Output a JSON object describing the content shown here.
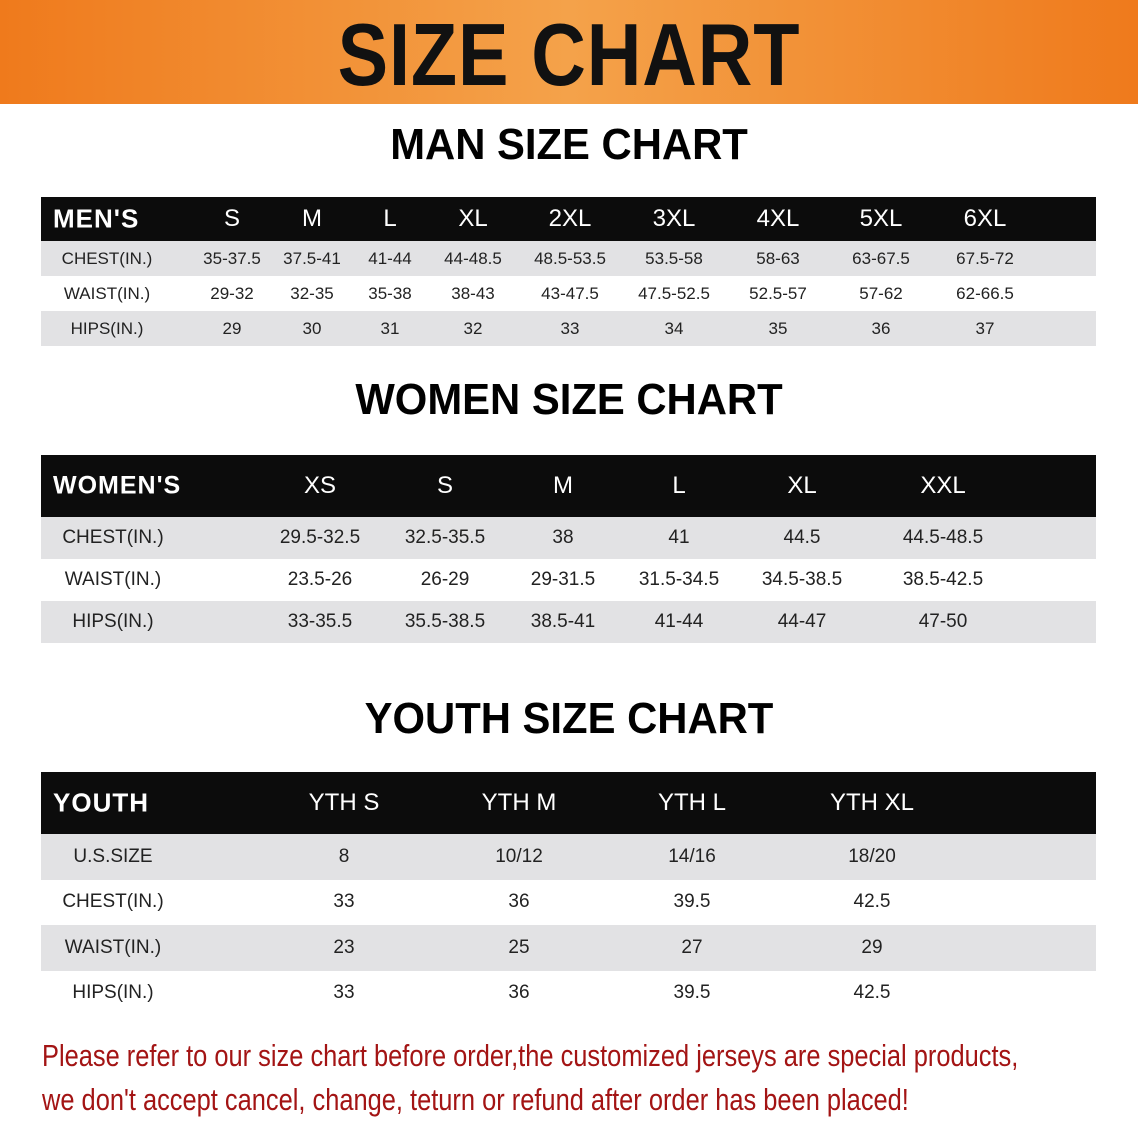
{
  "banner": {
    "title": "SIZE CHART",
    "color": "#ef7a1c"
  },
  "men": {
    "title": "MAN SIZE CHART",
    "header": [
      "MEN'S",
      "S",
      "M",
      "L",
      "XL",
      "2XL",
      "3XL",
      "4XL",
      "5XL",
      "6XL"
    ],
    "rows": [
      [
        "CHEST(IN.)",
        "35-37.5",
        "37.5-41",
        "41-44",
        "44-48.5",
        "48.5-53.5",
        "53.5-58",
        "58-63",
        "63-67.5",
        "67.5-72"
      ],
      [
        "WAIST(IN.)",
        "29-32",
        "32-35",
        "35-38",
        "38-43",
        "43-47.5",
        "47.5-52.5",
        "52.5-57",
        "57-62",
        "62-66.5"
      ],
      [
        "HIPS(IN.)",
        "29",
        "30",
        "31",
        "32",
        "33",
        "34",
        "35",
        "36",
        "37"
      ]
    ]
  },
  "women": {
    "title": "WOMEN SIZE CHART",
    "header": [
      "WOMEN'S",
      "XS",
      "S",
      "M",
      "L",
      "XL",
      "XXL"
    ],
    "rows": [
      [
        "CHEST(IN.)",
        "29.5-32.5",
        "32.5-35.5",
        "38",
        "41",
        "44.5",
        "44.5-48.5"
      ],
      [
        "WAIST(IN.)",
        "23.5-26",
        "26-29",
        "29-31.5",
        "31.5-34.5",
        "34.5-38.5",
        "38.5-42.5"
      ],
      [
        "HIPS(IN.)",
        "33-35.5",
        "35.5-38.5",
        "38.5-41",
        "41-44",
        "44-47",
        "47-50"
      ]
    ]
  },
  "youth": {
    "title": "YOUTH SIZE CHART",
    "header": [
      "YOUTH",
      "YTH S",
      "YTH M",
      "YTH L",
      "YTH XL"
    ],
    "rows": [
      [
        "U.S.SIZE",
        "8",
        "10/12",
        "14/16",
        "18/20"
      ],
      [
        "CHEST(IN.)",
        "33",
        "36",
        "39.5",
        "42.5"
      ],
      [
        "WAIST(IN.)",
        "23",
        "25",
        "27",
        "29"
      ],
      [
        "HIPS(IN.)",
        "33",
        "36",
        "39.5",
        "42.5"
      ]
    ]
  },
  "footer": {
    "line1": "Please refer to our size chart before order,the customized jerseys are special products,",
    "line2": "we don't accept cancel, change, teturn or refund after order has been placed!",
    "color": "#a31414"
  }
}
